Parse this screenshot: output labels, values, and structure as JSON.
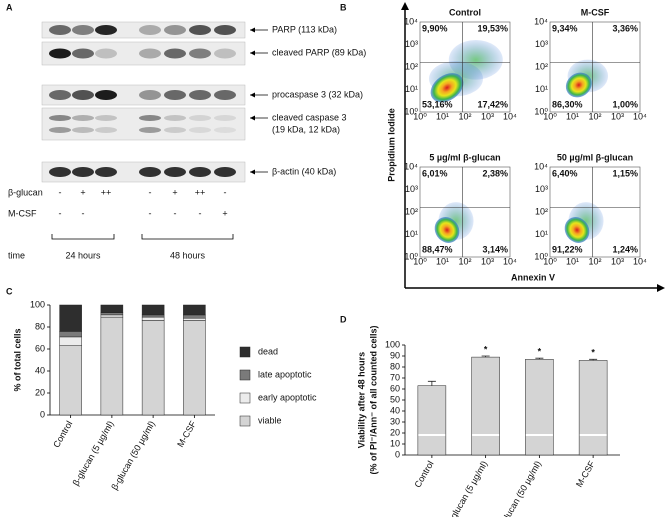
{
  "panel_a": {
    "label": "A",
    "bands": [
      "PARP (113 kDa)",
      "cleaved PARP (89 kDa)",
      "procaspase 3 (32 kDa)",
      "cleaved caspase 3",
      "(19 kDa, 12 kDa)",
      "β-actin (40 kDa)"
    ],
    "treatments": [
      {
        "name": "β-glucan",
        "signs": [
          "-",
          "+",
          "++",
          "-",
          "+",
          "++",
          "-"
        ]
      },
      {
        "name": "M-CSF",
        "signs": [
          "-",
          "-",
          null,
          "-",
          "-",
          "-",
          "+"
        ]
      }
    ],
    "time": {
      "label": "time",
      "groups": [
        "24 hours",
        "48 hours"
      ]
    }
  },
  "panel_b": {
    "label": "B",
    "y_label": "Propidium Iodide",
    "x_label": "Annexin V",
    "axis_ticks": [
      "10⁰",
      "10¹",
      "10²",
      "10³",
      "10⁴"
    ],
    "plots": [
      {
        "title": "Control",
        "upper_left": "9,90%",
        "upper_right": "19,53%",
        "lower_left": "53,16%",
        "lower_right": "17,42%"
      },
      {
        "title": "M-CSF",
        "upper_left": "9,34%",
        "upper_right": "3,36%",
        "lower_left": "86,30%",
        "lower_right": "1,00%"
      },
      {
        "title": "5 µg/ml β-glucan",
        "upper_left": "6,01%",
        "upper_right": "2,38%",
        "lower_left": "88,47%",
        "lower_right": "3,14%"
      },
      {
        "title": "50 µg/ml β-glucan",
        "upper_left": "6,40%",
        "upper_right": "1,15%",
        "lower_left": "91,22%",
        "lower_right": "1,24%"
      }
    ]
  },
  "chart_data": [
    {
      "type": "bar",
      "panel": "C",
      "stacked": true,
      "y_label": "% of total cells",
      "categories": [
        "Control",
        "β-glucan (5 µg/ml)",
        "β-glucan (50 µg/ml)",
        "M-CSF"
      ],
      "series": [
        {
          "name": "viable",
          "color": "#d4d4d4",
          "values": [
            63,
            89,
            86,
            86
          ]
        },
        {
          "name": "early apoptotic",
          "color": "#ececec",
          "values": [
            8,
            2,
            3,
            2
          ]
        },
        {
          "name": "late apoptotic",
          "color": "#7a7a7a",
          "values": [
            5,
            2,
            2,
            3
          ]
        },
        {
          "name": "dead",
          "color": "#2e2e2e",
          "values": [
            24,
            7,
            9,
            9
          ]
        }
      ],
      "ylim": [
        0,
        100
      ],
      "yticks": [
        0,
        20,
        40,
        60,
        80,
        100
      ]
    },
    {
      "type": "bar",
      "panel": "D",
      "y_label": [
        "Viability after 48 hours",
        "(% of PI⁻/Ann⁻ of all counted cells)"
      ],
      "categories": [
        "Control",
        "β-glucan (5 µg/ml)",
        "β-glucan (50 µg/ml)",
        "M-CSF"
      ],
      "values": [
        63,
        89,
        87,
        86
      ],
      "errors": [
        4,
        1,
        1,
        1
      ],
      "color": "#d4d4d4",
      "annotations": [
        {
          "index": 1,
          "text": "*"
        },
        {
          "index": 2,
          "text": "*"
        },
        {
          "index": 3,
          "text": "*"
        }
      ],
      "ylim": [
        0,
        100
      ],
      "yticks": [
        0,
        10,
        20,
        30,
        40,
        50,
        60,
        70,
        80,
        90,
        100
      ]
    }
  ]
}
